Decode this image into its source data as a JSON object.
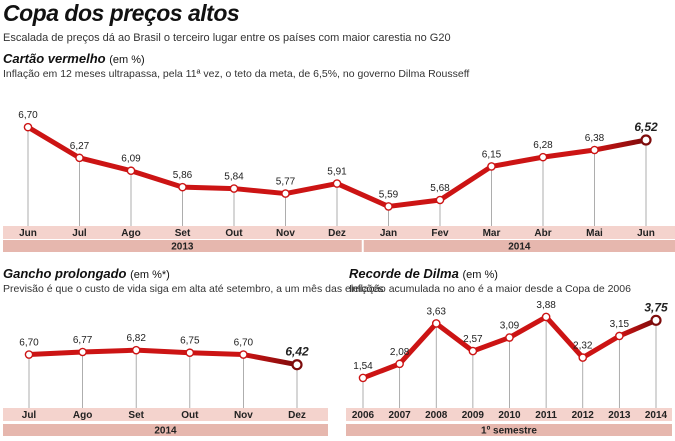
{
  "header": {
    "title": "Copa dos preços altos",
    "subtitle": "Escalada de preços dá ao Brasil o terceiro lugar entre os países com maior carestia no G20"
  },
  "colors": {
    "line": "#cc1414",
    "line_dark": "#7d0b0b",
    "band": "#f4d3cd",
    "period_band": "#e6b7ae",
    "tick": "#999999"
  },
  "chart_data": [
    {
      "type": "line",
      "title": "Cartão vermelho",
      "title_unit": "(em %)",
      "subtitle": "Inflação em 12 meses ultrapassa, pela 11ª vez, o teto da meta, de 6,5%, no governo Dilma Rousseff",
      "categories": [
        "Jun",
        "Jul",
        "Ago",
        "Set",
        "Out",
        "Nov",
        "Dez",
        "Jan",
        "Fev",
        "Mar",
        "Abr",
        "Mai",
        "Jun"
      ],
      "values": [
        6.7,
        6.27,
        6.09,
        5.86,
        5.84,
        5.77,
        5.91,
        5.59,
        5.68,
        6.15,
        6.28,
        6.38,
        6.52
      ],
      "labels": [
        "6,70",
        "6,27",
        "6,09",
        "5,86",
        "5,84",
        "5,77",
        "5,91",
        "5,59",
        "5,68",
        "6,15",
        "6,28",
        "6,38",
        "6,52"
      ],
      "groups": [
        {
          "label": "2013",
          "from": 0,
          "to": 6
        },
        {
          "label": "2014",
          "from": 7,
          "to": 12
        }
      ],
      "ylim": [
        5.4,
        6.8
      ]
    },
    {
      "type": "line",
      "title": "Gancho prolongado",
      "title_unit": "(em %*)",
      "subtitle": "Previsão é que o custo de vida siga em alta até setembro, a um mês das eleições",
      "categories": [
        "Jul",
        "Ago",
        "Set",
        "Out",
        "Nov",
        "Dez"
      ],
      "values": [
        6.7,
        6.77,
        6.82,
        6.75,
        6.7,
        6.42
      ],
      "labels": [
        "6,70",
        "6,77",
        "6,82",
        "6,75",
        "6,70",
        "6,42"
      ],
      "groups": [
        {
          "label": "2014",
          "from": 0,
          "to": 5
        }
      ],
      "ylim": [
        6.0,
        7.1
      ]
    },
    {
      "type": "line",
      "title": "Recorde de Dilma",
      "title_unit": "(em %)",
      "subtitle": "Inflação acumulada no ano é a maior desde a Copa de 2006",
      "categories": [
        "2006",
        "2007",
        "2008",
        "2009",
        "2010",
        "2011",
        "2012",
        "2013",
        "2014"
      ],
      "values": [
        1.54,
        2.08,
        3.63,
        2.57,
        3.09,
        3.88,
        2.32,
        3.15,
        3.75
      ],
      "labels": [
        "1,54",
        "2,08",
        "3,63",
        "2,57",
        "3,09",
        "3,88",
        "2,32",
        "3,15",
        "3,75"
      ],
      "groups": [
        {
          "label": "1º semestre",
          "from": 0,
          "to": 8
        }
      ],
      "ylim": [
        1.0,
        4.3
      ]
    }
  ]
}
